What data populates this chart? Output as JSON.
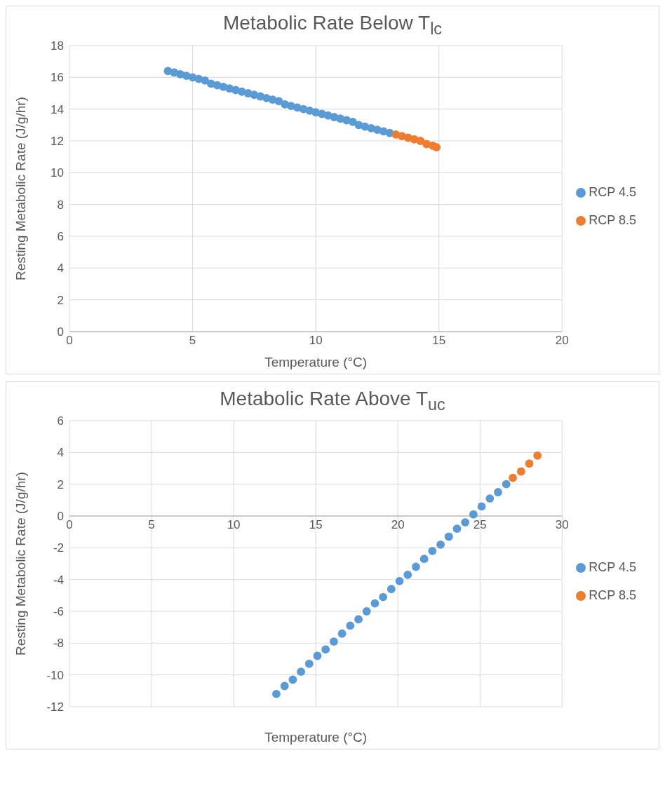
{
  "chart_data": [
    {
      "type": "scatter",
      "title": "Metabolic Rate Below T$_{lc}$",
      "xlabel": "Temperature (°C)",
      "ylabel": "Resting Metabolic Rate (J/g/hr)",
      "xlim": [
        0,
        20
      ],
      "xticks": [
        0,
        5,
        10,
        15,
        20
      ],
      "ylim": [
        0,
        18
      ],
      "yticks": [
        0,
        2,
        4,
        6,
        8,
        10,
        12,
        14,
        16,
        18
      ],
      "grid": true,
      "legend": "right",
      "marker": "circle",
      "series": [
        {
          "name": "RCP 4.5",
          "color": "#5b9bd5",
          "x": [
            4,
            4.25,
            4.5,
            4.75,
            5,
            5.25,
            5.5,
            5.75,
            6,
            6.25,
            6.5,
            6.75,
            7,
            7.25,
            7.5,
            7.75,
            8,
            8.25,
            8.5,
            8.75,
            9,
            9.25,
            9.5,
            9.75,
            10,
            10.25,
            10.5,
            10.75,
            11,
            11.25,
            11.5,
            11.75,
            12,
            12.25,
            12.5,
            12.75,
            13
          ],
          "values": [
            16.4,
            16.3,
            16.2,
            16.1,
            16.0,
            15.9,
            15.8,
            15.6,
            15.5,
            15.4,
            15.3,
            15.2,
            15.1,
            15.0,
            14.9,
            14.8,
            14.7,
            14.6,
            14.5,
            14.3,
            14.2,
            14.1,
            14.0,
            13.9,
            13.8,
            13.7,
            13.6,
            13.5,
            13.4,
            13.3,
            13.2,
            13.0,
            12.9,
            12.8,
            12.7,
            12.6,
            12.5
          ]
        },
        {
          "name": "RCP 8.5",
          "color": "#ed7d31",
          "x": [
            13.25,
            13.5,
            13.75,
            14,
            14.25,
            14.5,
            14.75,
            14.9
          ],
          "values": [
            12.4,
            12.3,
            12.2,
            12.1,
            12.0,
            11.8,
            11.7,
            11.6
          ]
        }
      ]
    },
    {
      "type": "scatter",
      "title": "Metabolic Rate Above T$_{uc}$",
      "xlabel": "Temperature (°C)",
      "ylabel": "Resting Metabolic Rate (J/g/hr)",
      "xlim": [
        0,
        30
      ],
      "xticks": [
        0,
        5,
        10,
        15,
        20,
        25,
        30
      ],
      "ylim": [
        -12,
        6
      ],
      "yticks": [
        -12,
        -10,
        -8,
        -6,
        -4,
        -2,
        0,
        2,
        4,
        6
      ],
      "grid": true,
      "legend": "right",
      "marker": "circle",
      "series": [
        {
          "name": "RCP 4.5",
          "color": "#5b9bd5",
          "x": [
            12.6,
            13.1,
            13.6,
            14.1,
            14.6,
            15.1,
            15.6,
            16.1,
            16.6,
            17.1,
            17.6,
            18.1,
            18.6,
            19.1,
            19.6,
            20.1,
            20.6,
            21.1,
            21.6,
            22.1,
            22.6,
            23.1,
            23.6,
            24.1,
            24.6,
            25.1,
            25.6,
            26.1,
            26.6
          ],
          "values": [
            -11.2,
            -10.7,
            -10.3,
            -9.8,
            -9.3,
            -8.8,
            -8.4,
            -7.9,
            -7.4,
            -6.9,
            -6.5,
            -6.0,
            -5.5,
            -5.1,
            -4.6,
            -4.1,
            -3.7,
            -3.2,
            -2.7,
            -2.2,
            -1.8,
            -1.3,
            -0.8,
            -0.4,
            0.1,
            0.6,
            1.1,
            1.5,
            2.0
          ]
        },
        {
          "name": "RCP 8.5",
          "color": "#ed7d31",
          "x": [
            27.0,
            27.5,
            28.0,
            28.5
          ],
          "values": [
            2.4,
            2.8,
            3.3,
            3.8
          ]
        }
      ]
    }
  ]
}
